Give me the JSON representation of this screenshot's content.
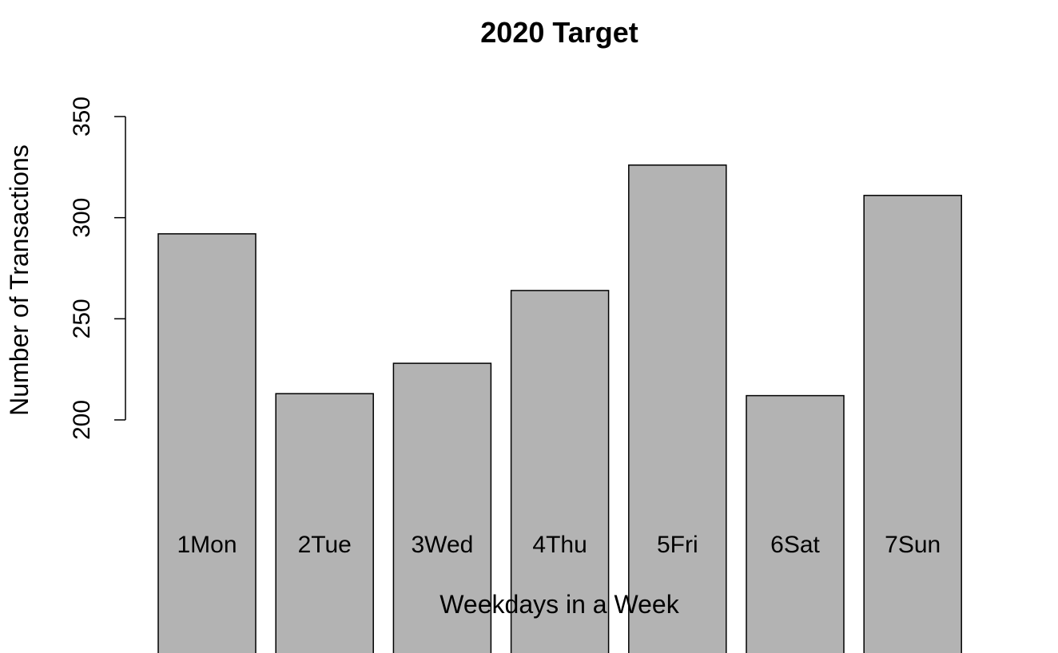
{
  "chart_data": {
    "type": "bar",
    "title": "2020 Target",
    "xlabel": "Weekdays in a Week",
    "ylabel": "Number of Transactions",
    "categories": [
      "1Mon",
      "2Tue",
      "3Wed",
      "4Thu",
      "5Fri",
      "6Sat",
      "7Sun"
    ],
    "values": [
      292,
      213,
      228,
      264,
      326,
      212,
      311
    ],
    "ylim": [
      200,
      350
    ],
    "yticks": [
      "200",
      "250",
      "300",
      "350"
    ],
    "bar_color": "#b3b3b3",
    "grid": false,
    "legend": "none"
  }
}
